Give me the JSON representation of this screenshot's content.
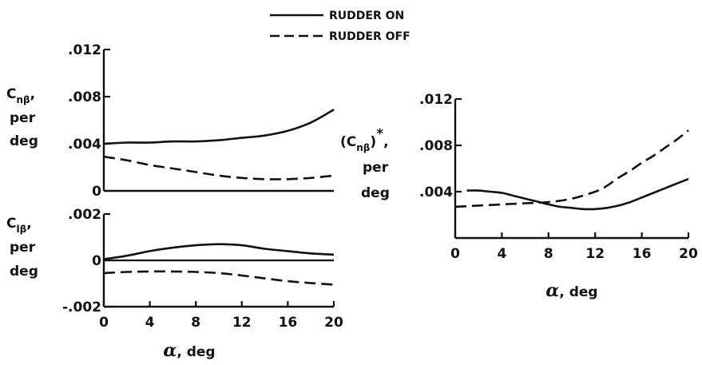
{
  "legend": [
    {
      "label": "RUDDER ON",
      "style": "solid"
    },
    {
      "label": "RUDDER OFF",
      "style": "dashed"
    }
  ],
  "colors": {
    "ink": "#111111",
    "background": "#ffffff"
  },
  "panels": {
    "top_left": {
      "ylabel_main": "C",
      "ylabel_sub": "nβ",
      "ylabel_comma": ",",
      "ylabel_line2": "per",
      "ylabel_line3": "deg"
    },
    "bottom_left": {
      "ylabel_main": "C",
      "ylabel_sub": "lβ",
      "ylabel_comma": ",",
      "ylabel_line2": "per",
      "ylabel_line3": "deg",
      "xlabel_symbol": "α",
      "xlabel_unit": ", deg"
    },
    "right": {
      "ylabel_open": "(C",
      "ylabel_sub": "nβ",
      "ylabel_close": ")",
      "ylabel_star": "*",
      "ylabel_comma": ",",
      "ylabel_line2": "per",
      "ylabel_line3": "deg",
      "xlabel_symbol": "α",
      "xlabel_unit": ", deg"
    }
  },
  "chart_data": [
    {
      "type": "line",
      "ylabel": "Cnβ, per deg",
      "xlim": [
        0,
        20
      ],
      "ylim": [
        0,
        0.012
      ],
      "yticks": [
        ".012",
        ".008",
        ".004",
        "0"
      ],
      "yticks_values": [
        0.012,
        0.008,
        0.004,
        0
      ],
      "xticks": [],
      "series": [
        {
          "name": "RUDDER ON",
          "style": "solid",
          "x": [
            0,
            2,
            4,
            6,
            8,
            10,
            12,
            14,
            16,
            18,
            20
          ],
          "y": [
            0.004,
            0.0041,
            0.0041,
            0.0042,
            0.0042,
            0.0043,
            0.0045,
            0.0047,
            0.0051,
            0.0058,
            0.0069
          ]
        },
        {
          "name": "RUDDER OFF",
          "style": "dashed",
          "x": [
            0,
            2,
            4,
            6,
            8,
            10,
            12,
            14,
            16,
            18,
            20
          ],
          "y": [
            0.0029,
            0.0026,
            0.0022,
            0.0019,
            0.0016,
            0.0013,
            0.0011,
            0.001,
            0.001,
            0.0011,
            0.0013
          ]
        }
      ]
    },
    {
      "type": "line",
      "ylabel": "Clβ, per deg",
      "xlabel": "α, deg",
      "xlim": [
        0,
        20
      ],
      "ylim": [
        -0.002,
        0.002
      ],
      "yticks": [
        ".002",
        "0",
        "-.002"
      ],
      "yticks_values": [
        0.002,
        0,
        -0.002
      ],
      "xticks": [
        "0",
        "4",
        "8",
        "12",
        "16",
        "20"
      ],
      "xticks_values": [
        0,
        4,
        8,
        12,
        16,
        20
      ],
      "reference_line_y": 0,
      "series": [
        {
          "name": "RUDDER ON",
          "style": "solid",
          "x": [
            0,
            2,
            4,
            6,
            8,
            10,
            12,
            14,
            16,
            18,
            20
          ],
          "y": [
            5e-05,
            0.0002,
            0.0004,
            0.00055,
            0.00065,
            0.0007,
            0.00065,
            0.0005,
            0.0004,
            0.0003,
            0.00025
          ]
        },
        {
          "name": "RUDDER OFF",
          "style": "dashed",
          "x": [
            0,
            2,
            4,
            6,
            8,
            10,
            12,
            14,
            16,
            18,
            20
          ],
          "y": [
            -0.00055,
            -0.0005,
            -0.00048,
            -0.00048,
            -0.0005,
            -0.00055,
            -0.00065,
            -0.00078,
            -0.0009,
            -0.00098,
            -0.00105
          ]
        }
      ]
    },
    {
      "type": "line",
      "ylabel": "(Cnβ)*, per deg",
      "xlabel": "α, deg",
      "xlim": [
        0,
        20
      ],
      "ylim": [
        0,
        0.012
      ],
      "yticks": [
        ".012",
        ".008",
        ".004"
      ],
      "yticks_values": [
        0.012,
        0.008,
        0.004
      ],
      "xticks": [
        "0",
        "4",
        "8",
        "12",
        "16",
        "20"
      ],
      "xticks_values": [
        0,
        4,
        8,
        12,
        16,
        20
      ],
      "series": [
        {
          "name": "RUDDER ON",
          "style": "solid",
          "x": [
            1,
            2,
            3,
            4,
            5,
            6,
            7,
            8,
            9,
            10,
            11,
            12,
            13,
            14,
            15,
            16,
            17,
            18,
            19,
            20
          ],
          "y": [
            0.0041,
            0.0041,
            0.004,
            0.0039,
            0.00365,
            0.0034,
            0.00315,
            0.0029,
            0.0027,
            0.0026,
            0.0025,
            0.0025,
            0.0026,
            0.0028,
            0.0031,
            0.0035,
            0.0039,
            0.0043,
            0.0047,
            0.0051
          ]
        },
        {
          "name": "RUDDER OFF",
          "style": "dashed",
          "x": [
            0,
            2,
            4,
            6,
            8,
            10,
            12,
            13,
            14,
            15,
            16,
            17,
            18,
            19,
            20
          ],
          "y": [
            0.0027,
            0.0028,
            0.0029,
            0.003,
            0.0031,
            0.0034,
            0.004,
            0.0045,
            0.0052,
            0.0058,
            0.0065,
            0.0071,
            0.0078,
            0.0085,
            0.0093
          ]
        }
      ]
    }
  ]
}
